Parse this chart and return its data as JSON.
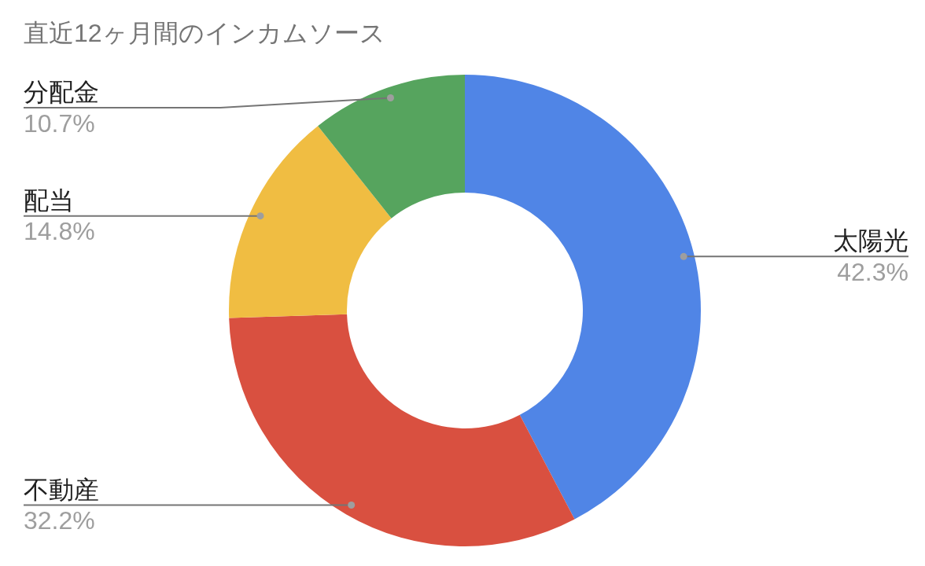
{
  "chart_data": {
    "type": "donut",
    "title": "直近12ヶ月間のインカムソース",
    "categories": [
      "太陽光",
      "不動産",
      "配当",
      "分配金"
    ],
    "values": [
      42.3,
      32.2,
      14.8,
      10.7
    ],
    "colors": [
      "#5085e6",
      "#d95040",
      "#f0bd42",
      "#56a45e"
    ],
    "value_labels": [
      "42.3%",
      "32.2%",
      "14.8%",
      "10.7%"
    ]
  }
}
